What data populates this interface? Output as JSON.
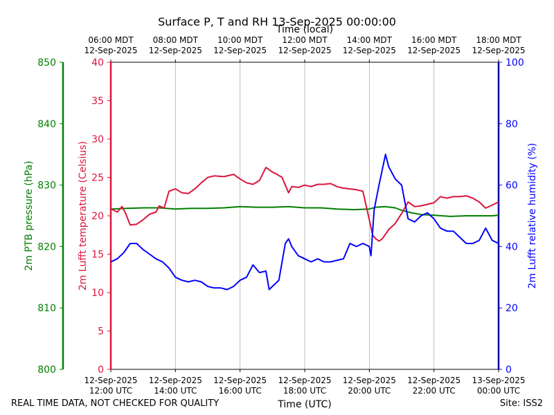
{
  "chart_data": {
    "type": "line",
    "title": "Surface P, T and RH 13-Sep-2025 00:00:00",
    "xlabel": "Time (UTC)",
    "xlabel_top": "Time (local)",
    "x_unit": "hours since 12-Sep-2025 12:00 UTC",
    "xlim": [
      0,
      12
    ],
    "x_ticks": [
      0,
      2,
      4,
      6,
      8,
      10,
      12
    ],
    "x_tick_labels_bottom": [
      [
        "12-Sep-2025",
        "12:00 UTC"
      ],
      [
        "12-Sep-2025",
        "14:00 UTC"
      ],
      [
        "12-Sep-2025",
        "16:00 UTC"
      ],
      [
        "12-Sep-2025",
        "18:00 UTC"
      ],
      [
        "12-Sep-2025",
        "20:00 UTC"
      ],
      [
        "12-Sep-2025",
        "22:00 UTC"
      ],
      [
        "13-Sep-2025",
        "00:00 UTC"
      ]
    ],
    "x_tick_labels_top": [
      [
        "06:00 MDT",
        "12-Sep-2025"
      ],
      [
        "08:00 MDT",
        "12-Sep-2025"
      ],
      [
        "10:00 MDT",
        "12-Sep-2025"
      ],
      [
        "12:00 MDT",
        "12-Sep-2025"
      ],
      [
        "14:00 MDT",
        "12-Sep-2025"
      ],
      [
        "16:00 MDT",
        "12-Sep-2025"
      ],
      [
        "18:00 MDT",
        "12-Sep-2025"
      ]
    ],
    "grid": "vertical",
    "axes": {
      "pressure": {
        "label": "2m PTB pressure (hPa)",
        "ylim": [
          800,
          850
        ],
        "ticks": [
          800,
          810,
          820,
          830,
          840,
          850
        ],
        "color": "#008000"
      },
      "temperature": {
        "label": "2m Lufft temperature (Celsius)",
        "ylim": [
          0,
          40
        ],
        "ticks": [
          0,
          5,
          10,
          15,
          20,
          25,
          30,
          35,
          40
        ],
        "color": "#dc143c"
      },
      "humidity": {
        "label": "2m Lufft relative humidity (%)",
        "ylim": [
          0,
          100
        ],
        "ticks": [
          0,
          20,
          40,
          60,
          80,
          100
        ],
        "color": "#0000ff"
      }
    },
    "series": [
      {
        "name": "2m PTB pressure",
        "axis": "pressure",
        "color": "#008000",
        "x": [
          0,
          0.5,
          1,
          1.5,
          2,
          2.5,
          3,
          3.5,
          4,
          4.5,
          5,
          5.5,
          6,
          6.5,
          7,
          7.5,
          8,
          8.2,
          8.5,
          8.8,
          9,
          9.3,
          9.6,
          10,
          10.5,
          11,
          11.5,
          11.8,
          12
        ],
        "values": [
          826.1,
          826.2,
          826.3,
          826.3,
          826.1,
          826.2,
          826.2,
          826.3,
          826.5,
          826.4,
          826.4,
          826.5,
          826.3,
          826.3,
          826.1,
          826.0,
          826.1,
          826.4,
          826.5,
          826.3,
          825.9,
          825.5,
          825.2,
          825.1,
          824.9,
          825.0,
          825.0,
          825.0,
          825.1
        ]
      },
      {
        "name": "2m Lufft temperature",
        "axis": "temperature",
        "color": "#dc143c",
        "x": [
          0,
          0.2,
          0.35,
          0.45,
          0.6,
          0.8,
          1,
          1.2,
          1.4,
          1.5,
          1.65,
          1.8,
          2,
          2.2,
          2.4,
          2.6,
          2.8,
          3,
          3.2,
          3.5,
          3.8,
          4,
          4.2,
          4.4,
          4.6,
          4.8,
          5,
          5.1,
          5.3,
          5.5,
          5.6,
          5.8,
          6,
          6.2,
          6.4,
          6.6,
          6.8,
          7,
          7.2,
          7.4,
          7.6,
          7.8,
          8,
          8.1,
          8.2,
          8.3,
          8.4,
          8.6,
          8.8,
          9,
          9.2,
          9.4,
          9.6,
          9.8,
          10,
          10.2,
          10.4,
          10.6,
          10.8,
          11,
          11.2,
          11.4,
          11.6,
          11.8,
          12
        ],
        "values": [
          20.9,
          20.5,
          21.2,
          20.4,
          18.8,
          18.9,
          19.5,
          20.2,
          20.5,
          21.3,
          21.0,
          23.2,
          23.5,
          23.0,
          22.9,
          23.5,
          24.3,
          25.0,
          25.2,
          25.1,
          25.4,
          24.8,
          24.3,
          24.1,
          24.6,
          26.3,
          25.7,
          25.5,
          25.0,
          23.0,
          23.8,
          23.7,
          24.0,
          23.8,
          24.1,
          24.1,
          24.2,
          23.8,
          23.6,
          23.5,
          23.4,
          23.2,
          19.5,
          17.5,
          17.0,
          16.7,
          17.0,
          18.2,
          19.0,
          20.3,
          21.8,
          21.2,
          21.3,
          21.5,
          21.7,
          22.5,
          22.3,
          22.5,
          22.5,
          22.6,
          22.3,
          21.8,
          21.0,
          21.4,
          21.8
        ]
      },
      {
        "name": "2m Lufft relative humidity",
        "axis": "humidity",
        "color": "#0000ff",
        "x": [
          0,
          0.2,
          0.4,
          0.6,
          0.8,
          1,
          1.2,
          1.4,
          1.6,
          1.8,
          2,
          2.2,
          2.4,
          2.6,
          2.8,
          3,
          3.2,
          3.4,
          3.6,
          3.8,
          4,
          4.2,
          4.4,
          4.6,
          4.8,
          4.9,
          5,
          5.2,
          5.4,
          5.5,
          5.6,
          5.8,
          6,
          6.2,
          6.4,
          6.6,
          6.8,
          7,
          7.2,
          7.4,
          7.6,
          7.8,
          8,
          8.05,
          8.15,
          8.3,
          8.5,
          8.6,
          8.8,
          9,
          9.2,
          9.4,
          9.6,
          9.8,
          10,
          10.2,
          10.4,
          10.6,
          10.8,
          11,
          11.2,
          11.4,
          11.6,
          11.8,
          12
        ],
        "values": [
          35,
          36,
          38,
          41,
          41,
          39,
          37.5,
          36,
          35,
          33,
          30,
          29,
          28.5,
          29,
          28.5,
          27,
          26.5,
          26.5,
          26,
          27,
          29,
          30,
          34,
          31.5,
          32,
          26,
          27,
          29,
          41,
          42.5,
          40,
          37,
          36,
          35,
          36,
          35,
          35,
          35.5,
          36,
          41,
          40,
          41,
          40,
          37,
          52,
          60,
          70,
          66,
          62,
          60,
          49,
          48,
          50,
          51,
          49,
          46,
          45,
          45,
          43,
          41,
          41,
          42,
          46,
          42,
          41
        ]
      }
    ],
    "footer_left": "REAL TIME DATA, NOT CHECKED FOR QUALITY",
    "footer_right": "Site: ISS2"
  }
}
